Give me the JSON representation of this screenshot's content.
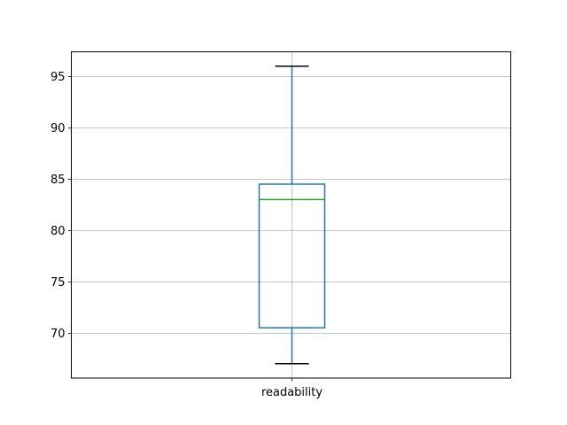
{
  "chart_data": {
    "type": "box",
    "title": "",
    "xlabel": "",
    "ylabel": "",
    "categories": [
      "readability"
    ],
    "boxes": [
      {
        "name": "readability",
        "whisker_low": 67,
        "q1": 70.5,
        "median": 83,
        "q3": 84.5,
        "whisker_high": 96
      }
    ],
    "ylim": [
      65.6,
      97.4
    ],
    "yticks": [
      70,
      75,
      80,
      85,
      90,
      95
    ],
    "grid": true,
    "colors": {
      "box": "#1f77b4",
      "median": "#2ca02c",
      "whisker_cap": "#000000",
      "grid": "#b0b0b0"
    }
  }
}
